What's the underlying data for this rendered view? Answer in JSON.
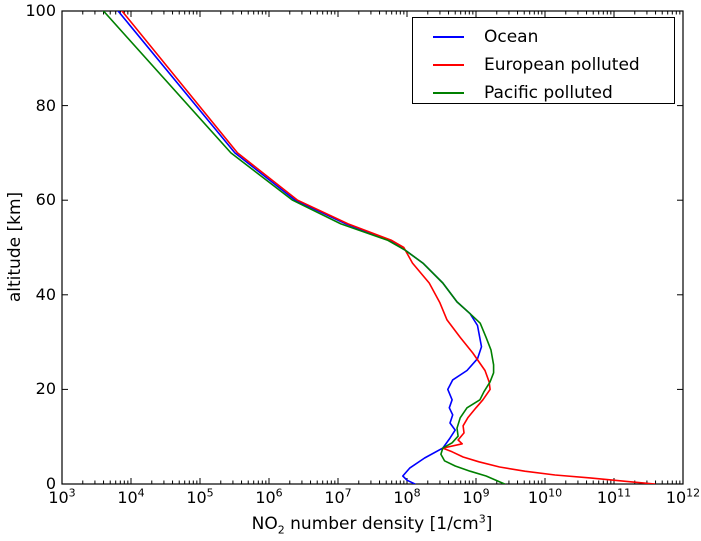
{
  "chart_data": {
    "type": "line",
    "title": "",
    "xlabel": "NO2 number density [1/cm3]",
    "xlabel_parts": [
      {
        "t": "NO"
      },
      {
        "t": "2",
        "sub": true
      },
      {
        "t": " number density [1/cm"
      },
      {
        "t": "3",
        "sup": true
      },
      {
        "t": "]"
      }
    ],
    "ylabel": "altitude [km]",
    "x_scale": "log",
    "xlim_exponents": [
      3,
      12
    ],
    "x_ticks_exponents": [
      3,
      4,
      5,
      6,
      7,
      8,
      9,
      10,
      11,
      12
    ],
    "ylim": [
      0,
      100
    ],
    "y_ticks": [
      0,
      20,
      40,
      60,
      80,
      100
    ],
    "grid": false,
    "legend_position": "upper right",
    "frame_color": "#000000",
    "background_color": "#ffffff",
    "series": [
      {
        "name": "Ocean",
        "color": "#0000ff",
        "points": [
          [
            6500.0,
            100
          ],
          [
            320000.0,
            70
          ],
          [
            2400000.0,
            60
          ],
          [
            13000000.0,
            55
          ],
          [
            56000000.0,
            51.5
          ],
          [
            93000000.0,
            49.5
          ],
          [
            170000000.0,
            46.7
          ],
          [
            330000000.0,
            42.5
          ],
          [
            530000000.0,
            38.5
          ],
          [
            820000000.0,
            36
          ],
          [
            1050000000.0,
            33.5
          ],
          [
            1200000000.0,
            29
          ],
          [
            1050000000.0,
            26.5
          ],
          [
            740000000.0,
            24
          ],
          [
            460000000.0,
            22
          ],
          [
            390000000.0,
            20
          ],
          [
            450000000.0,
            17.8
          ],
          [
            410000000.0,
            16.1
          ],
          [
            460000000.0,
            14.6
          ],
          [
            420000000.0,
            12.9
          ],
          [
            500000000.0,
            11.4
          ],
          [
            420000000.0,
            9.7
          ],
          [
            330000000.0,
            7.6
          ],
          [
            180000000.0,
            5.5
          ],
          [
            110000000.0,
            3.4
          ],
          [
            87000000.0,
            1.7
          ],
          [
            100000000.0,
            0.8
          ],
          [
            130000000.0,
            0
          ]
        ]
      },
      {
        "name": "European polluted",
        "color": "#ff0000",
        "points": [
          [
            7400.0,
            100
          ],
          [
            350000.0,
            70
          ],
          [
            2600000.0,
            60
          ],
          [
            14000000.0,
            55
          ],
          [
            60000000.0,
            51.5
          ],
          [
            90000000.0,
            50
          ],
          [
            120000000.0,
            46.7
          ],
          [
            210000000.0,
            42.5
          ],
          [
            300000000.0,
            38.3
          ],
          [
            380000000.0,
            34.7
          ],
          [
            590000000.0,
            31
          ],
          [
            900000000.0,
            27.7
          ],
          [
            1350000000.0,
            24
          ],
          [
            1550000000.0,
            21.6
          ],
          [
            1600000000.0,
            20
          ],
          [
            1260000000.0,
            17.8
          ],
          [
            1000000000.0,
            16.1
          ],
          [
            760000000.0,
            14
          ],
          [
            650000000.0,
            12.3
          ],
          [
            670000000.0,
            10.8
          ],
          [
            550000000.0,
            9.3
          ],
          [
            630000000.0,
            8.5
          ],
          [
            330000000.0,
            7.6
          ],
          [
            450000000.0,
            6.8
          ],
          [
            650000000.0,
            5.7
          ],
          [
            1100000000.0,
            4.7
          ],
          [
            2200000000.0,
            3.6
          ],
          [
            5100000000.0,
            2.7
          ],
          [
            14000000000.0,
            1.9
          ],
          [
            45000000000.0,
            1.3
          ],
          [
            140000000000.0,
            0.6
          ],
          [
            390000000000.0,
            0
          ]
        ]
      },
      {
        "name": "Pacific polluted",
        "color": "#008000",
        "points": [
          [
            4000.0,
            100
          ],
          [
            280000.0,
            70
          ],
          [
            2200000.0,
            60
          ],
          [
            11000000.0,
            55
          ],
          [
            53000000.0,
            51.5
          ],
          [
            93000000.0,
            49.5
          ],
          [
            170000000.0,
            46.7
          ],
          [
            330000000.0,
            42.5
          ],
          [
            530000000.0,
            38.5
          ],
          [
            820000000.0,
            36
          ],
          [
            1150000000.0,
            34
          ],
          [
            1400000000.0,
            31
          ],
          [
            1650000000.0,
            28.3
          ],
          [
            1800000000.0,
            25.2
          ],
          [
            1800000000.0,
            23.5
          ],
          [
            1600000000.0,
            21.6
          ],
          [
            1300000000.0,
            19.5
          ],
          [
            1140000000.0,
            17.8
          ],
          [
            740000000.0,
            16.1
          ],
          [
            590000000.0,
            14
          ],
          [
            530000000.0,
            11.8
          ],
          [
            550000000.0,
            10.1
          ],
          [
            450000000.0,
            8.7
          ],
          [
            330000000.0,
            7.6
          ],
          [
            310000000.0,
            6.3
          ],
          [
            350000000.0,
            4.9
          ],
          [
            500000000.0,
            3.8
          ],
          [
            820000000.0,
            2.7
          ],
          [
            1400000000.0,
            1.7
          ],
          [
            2600000000.0,
            0
          ]
        ]
      }
    ]
  }
}
